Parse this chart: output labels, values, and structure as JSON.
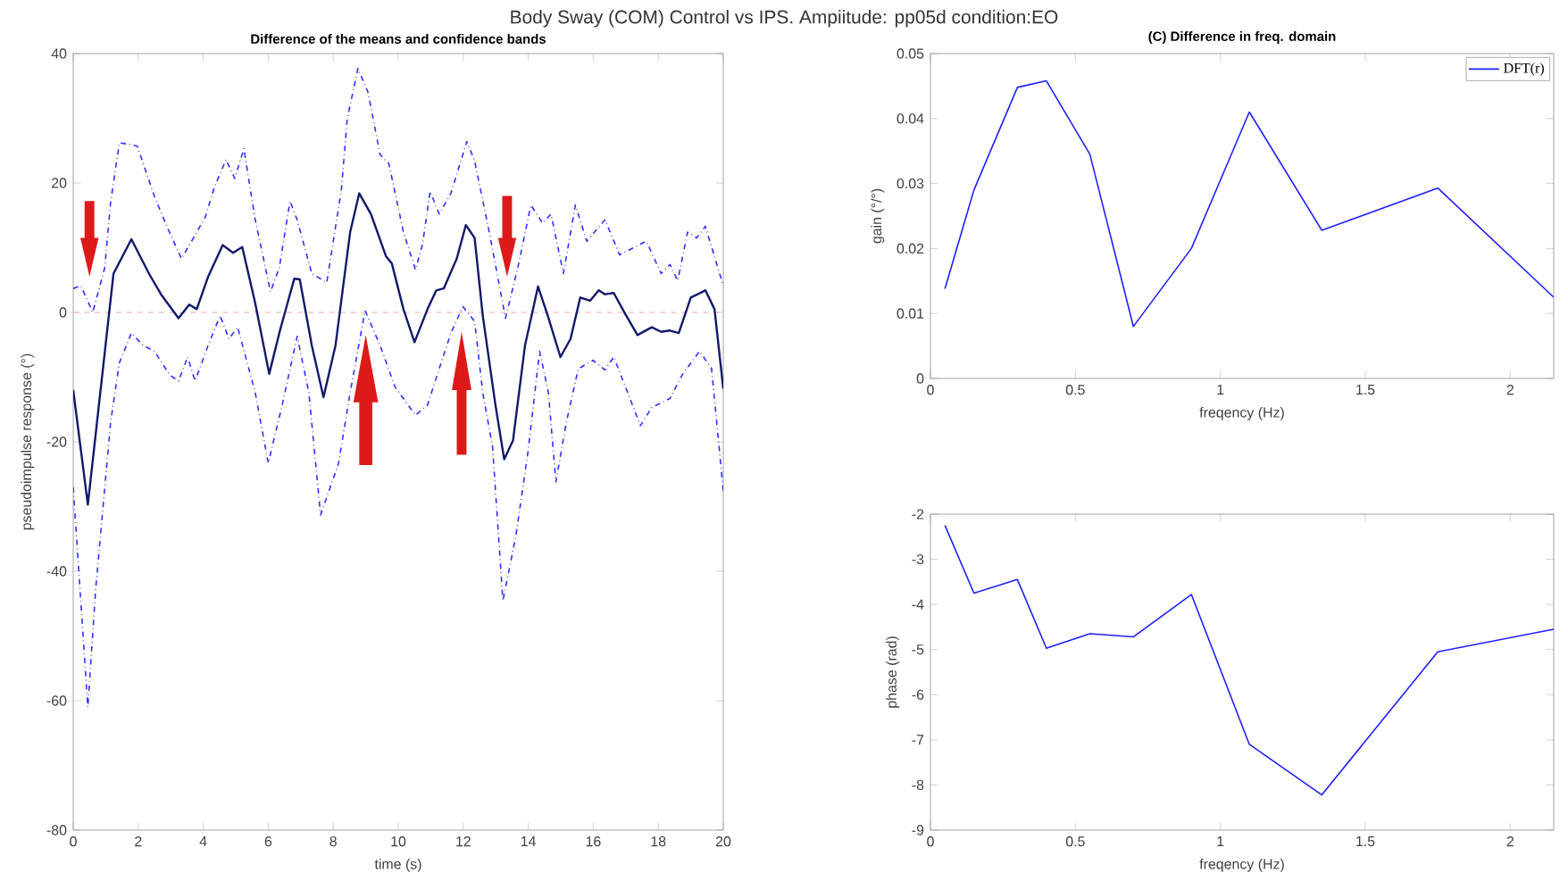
{
  "chart_data": [
    {
      "type": "line",
      "title": "Difference of the means and confidence bands",
      "xlabel": "time (s)",
      "ylabel": "pseudoimpulse response (°)",
      "annotations": [
        "Body Sway (COM) Control vs IPS. Ampiitude: pp05d condition:EO"
      ],
      "xlim": [
        0,
        20
      ],
      "ylim": [
        -80,
        40
      ],
      "xticks": [
        0,
        2,
        4,
        6,
        8,
        10,
        12,
        14,
        16,
        18,
        20
      ],
      "yticks": [
        -80,
        -60,
        -40,
        -20,
        0,
        20,
        40
      ],
      "ref_lines": [
        {
          "axis": "y",
          "value": 0,
          "color": "#f4a6a6",
          "line_style": "dashed"
        }
      ],
      "series": [
        {
          "color": "#10186a",
          "line_style": "solid",
          "x": [
            0,
            0.45,
            1.24,
            1.79,
            2.33,
            2.7,
            3.24,
            3.57,
            3.8,
            4.15,
            4.6,
            4.92,
            5.2,
            5.6,
            6.03,
            6.34,
            6.8,
            6.97,
            7.34,
            7.7,
            8.07,
            8.52,
            8.8,
            9.16,
            9.62,
            9.8,
            10.16,
            10.5,
            10.9,
            11.17,
            11.4,
            11.8,
            12.08,
            12.35,
            12.6,
            12.99,
            13.26,
            13.53,
            13.9,
            14.3,
            14.6,
            14.99,
            15.3,
            15.6,
            15.9,
            16.17,
            16.36,
            16.63,
            16.99,
            17.36,
            17.8,
            18.09,
            18.36,
            18.63,
            19.0,
            19.45,
            19.73,
            20
          ],
          "values": [
            -12,
            -29.7,
            6,
            11.3,
            6,
            2.8,
            -0.9,
            1.2,
            0.5,
            5.5,
            10.4,
            9.2,
            10.1,
            1.4,
            -9.5,
            -3.2,
            5.2,
            5.1,
            -5.1,
            -13.1,
            -5.1,
            12.4,
            18.4,
            15.2,
            8.7,
            7.6,
            0.5,
            -4.6,
            0.5,
            3.4,
            3.7,
            8.3,
            13.5,
            11.5,
            -0.5,
            -14.3,
            -22.7,
            -19.8,
            -5.1,
            4,
            -0.5,
            -6.9,
            -4.1,
            2.3,
            1.8,
            3.4,
            2.8,
            3,
            -0.3,
            -3.5,
            -2.3,
            -3,
            -2.8,
            -3.2,
            2.3,
            3.4,
            0.5,
            -11.8
          ]
        },
        {
          "color": "#2f2fff",
          "line_style": "dashdot",
          "x": [
            0,
            0.24,
            0.6,
            0.97,
            1.15,
            1.42,
            1.7,
            1.97,
            2.5,
            2.88,
            3.33,
            3.7,
            4.06,
            4.34,
            4.7,
            4.97,
            5.25,
            5.6,
            6.07,
            6.34,
            6.67,
            6.89,
            7.34,
            7.8,
            8.25,
            8.43,
            8.76,
            9.07,
            9.44,
            9.71,
            10.16,
            10.53,
            10.75,
            10.98,
            11.26,
            11.62,
            12.11,
            12.35,
            12.8,
            13.3,
            13.7,
            14.08,
            14.44,
            14.7,
            15.08,
            15.45,
            15.8,
            16.36,
            16.81,
            17.63,
            18.09,
            18.36,
            18.6,
            18.9,
            19.18,
            19.45,
            20
          ],
          "values": [
            3.7,
            4.1,
            0,
            6.9,
            17,
            26.2,
            26,
            25.7,
            17.9,
            13.3,
            8.3,
            11.5,
            14.7,
            19.3,
            23.6,
            20.7,
            25.3,
            14.3,
            3.2,
            6.9,
            17.2,
            14.3,
            6,
            4.6,
            18.9,
            29.9,
            37.7,
            34,
            24.4,
            23,
            12.4,
            6.6,
            10.6,
            18.7,
            15.2,
            18.4,
            26.4,
            23.4,
            12.4,
            -0.9,
            7.4,
            16.6,
            13.8,
            15.2,
            6,
            16.6,
            11,
            14.3,
            8.9,
            11,
            6,
            7.4,
            4.9,
            12.4,
            11.5,
            13.3,
            4.1
          ]
        },
        {
          "color": "#2f2fff",
          "line_style": "dashdot",
          "x": [
            0,
            0.45,
            0.69,
            1.15,
            1.42,
            1.79,
            2.15,
            2.5,
            2.97,
            3.24,
            3.52,
            3.75,
            4.15,
            4.52,
            4.79,
            5.06,
            5.6,
            6.0,
            6.43,
            6.89,
            7.25,
            7.61,
            8.16,
            8.52,
            8.98,
            9.44,
            9.9,
            10.53,
            10.9,
            11.26,
            11.62,
            11.99,
            12.35,
            12.6,
            12.9,
            13.22,
            13.62,
            13.99,
            14.35,
            14.62,
            14.85,
            15.17,
            15.54,
            15.99,
            16.36,
            16.63,
            16.99,
            17.45,
            17.8,
            18.36,
            18.73,
            19.27,
            19.64,
            20
          ],
          "values": [
            -27,
            -61,
            -42.8,
            -17,
            -7.8,
            -3.2,
            -5.1,
            -6,
            -9.7,
            -10.6,
            -6.9,
            -10.6,
            -5.1,
            -0.5,
            -4.1,
            -2.3,
            -12.4,
            -23.3,
            -14.3,
            -3.7,
            -12.4,
            -31.3,
            -23.4,
            -12.4,
            0.3,
            -5.1,
            -11.5,
            -15.9,
            -14.3,
            -8.7,
            -3.2,
            0.9,
            -1.4,
            -12.4,
            -20.7,
            -44.6,
            -34.5,
            -21.6,
            -6,
            -12.4,
            -26.2,
            -17,
            -8.7,
            -7.4,
            -8.9,
            -6.9,
            -11.5,
            -17.5,
            -14.7,
            -13.3,
            -9.7,
            -6,
            -8.7,
            -27.6
          ]
        }
      ]
    },
    {
      "type": "line",
      "title": "(C) Difference in freq. domain",
      "xlabel": "freqency (Hz)",
      "ylabel": "gain (°/°)",
      "legend": "top right",
      "xlim": [
        0,
        2.15
      ],
      "ylim": [
        0,
        0.05
      ],
      "xticks": [
        0,
        0.5,
        1,
        1.5,
        2
      ],
      "yticks": [
        0,
        0.01,
        0.02,
        0.03,
        0.04,
        0.05
      ],
      "series": [
        {
          "name": "DFT(r)",
          "color": "#1f1fff",
          "x": [
            0.05,
            0.15,
            0.3,
            0.4,
            0.55,
            0.7,
            0.9,
            1.1,
            1.35,
            1.75,
            2.15
          ],
          "values": [
            0.0138,
            0.029,
            0.0448,
            0.0458,
            0.0345,
            0.008,
            0.02,
            0.041,
            0.0228,
            0.0293,
            0.0125
          ]
        }
      ]
    },
    {
      "type": "line",
      "xlabel": "freqency (Hz)",
      "ylabel": "phase (rad)",
      "xlim": [
        0,
        2.15
      ],
      "ylim": [
        -9,
        -2
      ],
      "xticks": [
        0,
        0.5,
        1,
        1.5,
        2
      ],
      "yticks": [
        -9,
        -8,
        -7,
        -6,
        -5,
        -4,
        -3,
        -2
      ],
      "series": [
        {
          "color": "#1f1fff",
          "x": [
            0.05,
            0.15,
            0.3,
            0.4,
            0.55,
            0.7,
            0.9,
            1.1,
            1.35,
            1.75,
            2.15
          ],
          "values": [
            -2.25,
            -3.75,
            -3.45,
            -4.97,
            -4.65,
            -4.72,
            -3.78,
            -7.1,
            -8.22,
            -5.05,
            -4.55
          ]
        }
      ]
    }
  ]
}
